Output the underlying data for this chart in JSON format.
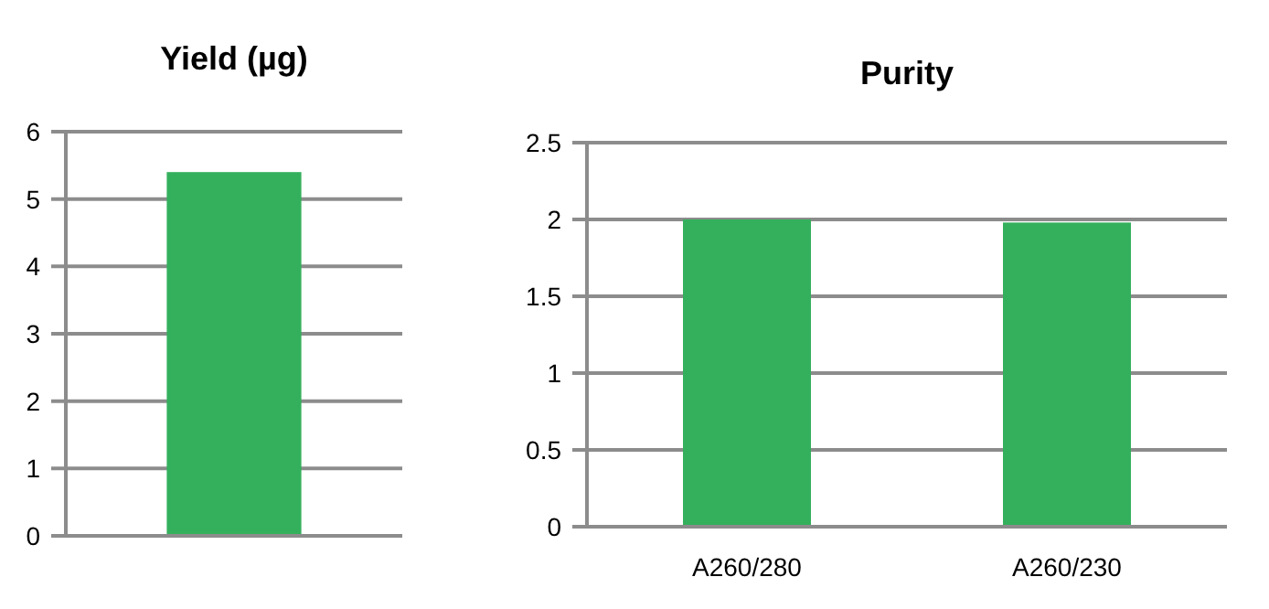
{
  "chart_data": [
    {
      "type": "bar",
      "title": "Yield (µg)",
      "categories": [
        null
      ],
      "values": [
        5.4
      ],
      "color": "#34b05c",
      "ylim": [
        0,
        6
      ],
      "yticks": [
        0,
        1,
        2,
        3,
        4,
        5,
        6
      ],
      "grid": "y"
    },
    {
      "type": "bar",
      "title": "Purity",
      "categories": [
        "A260/280",
        "A260/230"
      ],
      "values": [
        2.0,
        1.98
      ],
      "color": "#34b05c",
      "ylim": [
        0,
        2.5
      ],
      "yticks": [
        0,
        0.5,
        1,
        1.5,
        2,
        2.5
      ],
      "grid": "y"
    }
  ]
}
